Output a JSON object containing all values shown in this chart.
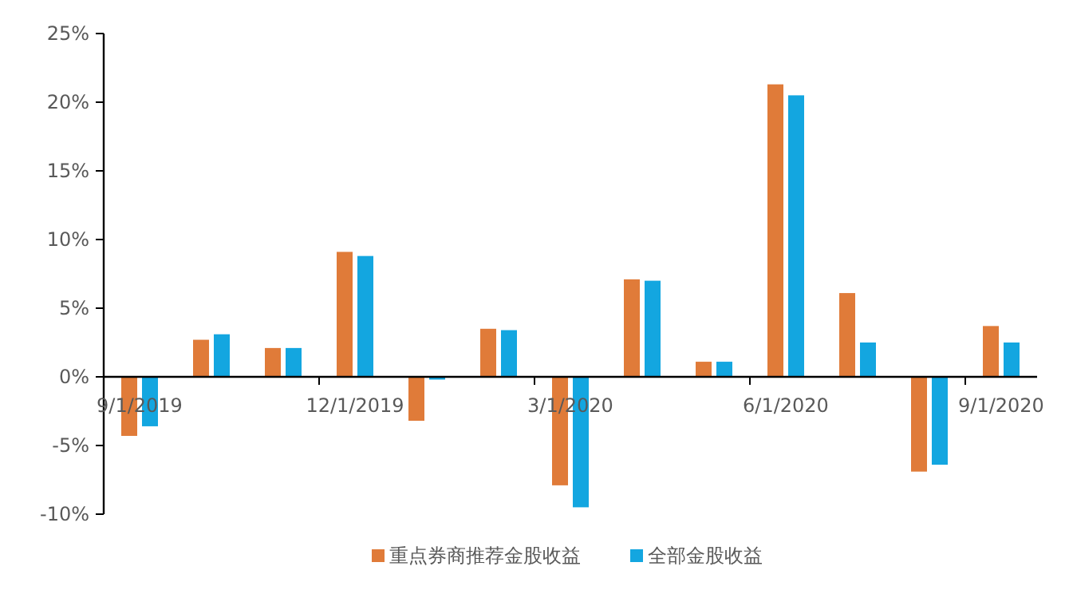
{
  "chart_data": {
    "type": "bar",
    "categories": [
      "9/1/2019",
      null,
      null,
      "12/1/2019",
      null,
      null,
      "3/1/2020",
      null,
      null,
      "6/1/2020",
      null,
      null,
      "9/1/2020"
    ],
    "series": [
      {
        "name": "重点券商推荐金股收益",
        "color": "#e07b39",
        "values": [
          -4.3,
          2.7,
          2.1,
          9.1,
          -3.2,
          3.5,
          -7.9,
          7.1,
          1.1,
          21.3,
          6.1,
          -6.9,
          3.7
        ]
      },
      {
        "name": "全部金股收益",
        "color": "#13a6e0",
        "values": [
          -3.6,
          3.1,
          2.1,
          8.8,
          -0.2,
          3.4,
          -9.5,
          7.0,
          1.1,
          20.5,
          2.5,
          -6.4,
          2.5
        ]
      }
    ],
    "ylim": [
      -10,
      25
    ],
    "yticks": [
      {
        "value": -10,
        "label": "-10%"
      },
      {
        "value": -5,
        "label": "-5%"
      },
      {
        "value": 0,
        "label": "0%"
      },
      {
        "value": 5,
        "label": "5%"
      },
      {
        "value": 10,
        "label": "10%"
      },
      {
        "value": 15,
        "label": "15%"
      },
      {
        "value": 20,
        "label": "20%"
      },
      {
        "value": 25,
        "label": "25%"
      }
    ],
    "legend": "bottom"
  }
}
